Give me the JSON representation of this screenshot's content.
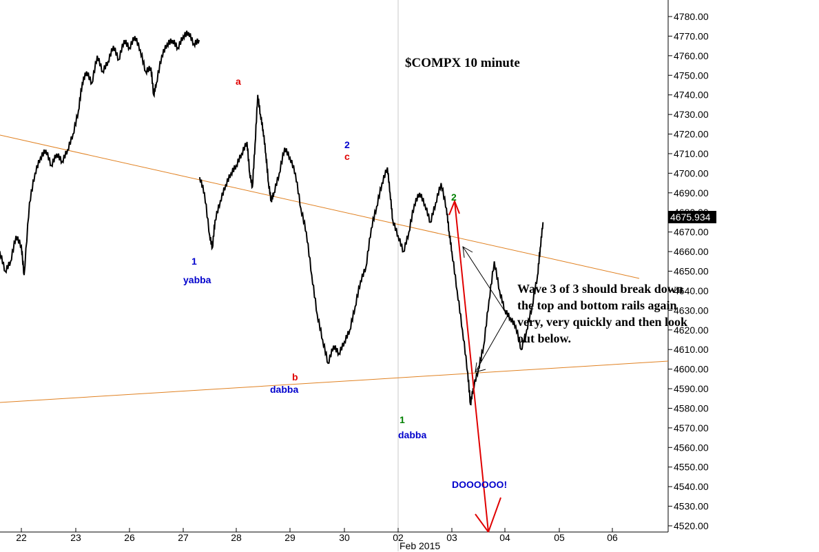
{
  "chart_data": {
    "type": "line",
    "title": "$COMPX 10 minute",
    "symbol": "$COMPX",
    "interval": "10 minute",
    "last_price": "4675.934",
    "ylim": [
      4516,
      4790
    ],
    "y_ticks": [
      "4520.00",
      "4530.00",
      "4540.00",
      "4550.00",
      "4560.00",
      "4570.00",
      "4580.00",
      "4590.00",
      "4600.00",
      "4610.00",
      "4620.00",
      "4630.00",
      "4640.00",
      "4650.00",
      "4660.00",
      "4670.00",
      "4680.00",
      "4690.00",
      "4700.00",
      "4710.00",
      "4720.00",
      "4730.00",
      "4740.00",
      "4750.00",
      "4760.00",
      "4770.00",
      "4780.00"
    ],
    "x_ticks": [
      "22",
      "23",
      "26",
      "27",
      "28",
      "29",
      "30",
      "02",
      "03",
      "04",
      "05",
      "06"
    ],
    "x_month_label": "Feb 2015",
    "grid": false,
    "series": [
      {
        "values": [
          [
            21.5,
            4672
          ],
          [
            21.6,
            4660
          ],
          [
            21.7,
            4650
          ],
          [
            21.8,
            4655
          ],
          [
            21.9,
            4668
          ],
          [
            22.0,
            4663
          ],
          [
            22.05,
            4648
          ],
          [
            22.15,
            4685
          ],
          [
            22.25,
            4700
          ],
          [
            22.35,
            4708
          ],
          [
            22.45,
            4712
          ],
          [
            22.55,
            4704
          ],
          [
            22.65,
            4710
          ],
          [
            22.75,
            4706
          ],
          [
            22.85,
            4712
          ],
          [
            22.95,
            4720
          ],
          [
            23.05,
            4732
          ],
          [
            23.12,
            4746
          ],
          [
            23.2,
            4752
          ],
          [
            23.3,
            4746
          ],
          [
            23.4,
            4760
          ],
          [
            23.5,
            4752
          ],
          [
            23.6,
            4757
          ],
          [
            23.7,
            4765
          ],
          [
            23.8,
            4758
          ],
          [
            23.9,
            4768
          ],
          [
            24.0,
            4764
          ],
          [
            24.1,
            4770
          ],
          [
            24.2,
            4763
          ],
          [
            24.3,
            4752
          ],
          [
            24.4,
            4754
          ],
          [
            24.45,
            4740
          ],
          [
            24.5,
            4746
          ],
          [
            24.6,
            4760
          ],
          [
            24.7,
            4766
          ],
          [
            24.8,
            4768
          ],
          [
            24.9,
            4764
          ],
          [
            25.0,
            4770
          ],
          [
            25.1,
            4772
          ],
          [
            25.2,
            4766
          ],
          [
            25.3,
            4768
          ]
        ]
      },
      {
        "values": [
          [
            25.31,
            4698
          ],
          [
            25.4,
            4690
          ],
          [
            25.5,
            4668
          ],
          [
            25.55,
            4662
          ],
          [
            25.6,
            4676
          ],
          [
            25.7,
            4686
          ],
          [
            25.8,
            4694
          ],
          [
            25.9,
            4700
          ],
          [
            26.0,
            4704
          ],
          [
            26.1,
            4710
          ],
          [
            26.2,
            4716
          ],
          [
            26.25,
            4700
          ],
          [
            26.3,
            4693
          ],
          [
            26.35,
            4715
          ],
          [
            26.4,
            4740
          ],
          [
            26.45,
            4730
          ],
          [
            26.5,
            4722
          ],
          [
            26.55,
            4710
          ],
          [
            26.6,
            4695
          ],
          [
            26.65,
            4686
          ],
          [
            26.7,
            4690
          ],
          [
            26.8,
            4700
          ],
          [
            26.9,
            4713
          ],
          [
            27.0,
            4708
          ],
          [
            27.1,
            4700
          ],
          [
            27.2,
            4682
          ],
          [
            27.3,
            4670
          ],
          [
            27.4,
            4648
          ],
          [
            27.5,
            4628
          ],
          [
            27.6,
            4615
          ],
          [
            27.7,
            4603
          ],
          [
            27.8,
            4612
          ],
          [
            27.9,
            4608
          ],
          [
            28.0,
            4614
          ],
          [
            28.1,
            4620
          ],
          [
            28.2,
            4632
          ],
          [
            28.3,
            4645
          ],
          [
            28.4,
            4652
          ],
          [
            28.5,
            4672
          ],
          [
            28.6,
            4683
          ],
          [
            28.7,
            4695
          ],
          [
            28.8,
            4703
          ],
          [
            28.85,
            4690
          ],
          [
            28.9,
            4676
          ],
          [
            29.0,
            4668
          ],
          [
            29.1,
            4660
          ],
          [
            29.2,
            4670
          ],
          [
            29.3,
            4684
          ],
          [
            29.4,
            4690
          ],
          [
            29.5,
            4684
          ],
          [
            29.6,
            4675
          ],
          [
            29.7,
            4685
          ],
          [
            29.8,
            4695
          ],
          [
            29.9,
            4682
          ],
          [
            29.95,
            4670
          ],
          [
            30.0,
            4660
          ],
          [
            30.1,
            4640
          ],
          [
            30.2,
            4620
          ],
          [
            30.3,
            4598
          ],
          [
            30.35,
            4582
          ],
          [
            30.4,
            4590
          ],
          [
            30.5,
            4600
          ],
          [
            30.6,
            4612
          ],
          [
            30.7,
            4635
          ],
          [
            30.8,
            4655
          ],
          [
            30.9,
            4640
          ],
          [
            31.0,
            4630
          ],
          [
            31.1,
            4626
          ],
          [
            31.2,
            4622
          ],
          [
            31.3,
            4610
          ],
          [
            31.4,
            4620
          ],
          [
            31.5,
            4632
          ],
          [
            31.6,
            4648
          ],
          [
            31.65,
            4662
          ],
          [
            31.7,
            4675
          ]
        ]
      }
    ],
    "annotations": [
      {
        "text": "a",
        "color": "#e00000"
      },
      {
        "text": "1",
        "color": "#0000cc"
      },
      {
        "text": "yabba",
        "color": "#0000cc"
      },
      {
        "text": "b",
        "color": "#e00000"
      },
      {
        "text": "dabba",
        "color": "#0000cc"
      },
      {
        "text": "2",
        "color": "#0000cc"
      },
      {
        "text": "c",
        "color": "#e00000"
      },
      {
        "text": "1",
        "color": "#008000"
      },
      {
        "text": "dabba",
        "color": "#0000cc"
      },
      {
        "text": "2",
        "color": "#008000"
      },
      {
        "text": "DOOOOOO!",
        "color": "#0000cc"
      }
    ],
    "comment": [
      "Wave 3 of 3 should break down",
      "the top and bottom rails again",
      "very, very quickly and then look",
      "out below."
    ],
    "trendline_color": "#e08020",
    "projection_color": "#e00000"
  }
}
